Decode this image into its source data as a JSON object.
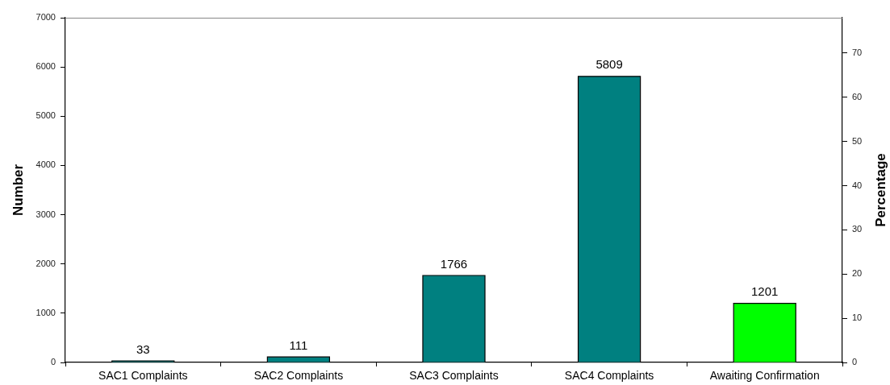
{
  "chart_data": {
    "type": "bar",
    "categories": [
      "SAC1 Complaints",
      "SAC2 Complaints",
      "SAC3 Complaints",
      "SAC4 Complaints",
      "Awaiting Confirmation"
    ],
    "values": [
      33,
      111,
      1766,
      5809,
      1201
    ],
    "colors": [
      "#008080",
      "#008080",
      "#008080",
      "#008080",
      "#00ff00"
    ],
    "ylabel": "Number",
    "y2label": "Percentage",
    "ylim": [
      0,
      7000
    ],
    "yticks": [
      0,
      1000,
      2000,
      3000,
      4000,
      5000,
      6000,
      7000
    ],
    "y2lim": [
      0,
      78
    ],
    "y2ticks": [
      0,
      10,
      20,
      30,
      40,
      50,
      60,
      70
    ],
    "data_labels": true,
    "grid": false,
    "legend": false
  }
}
